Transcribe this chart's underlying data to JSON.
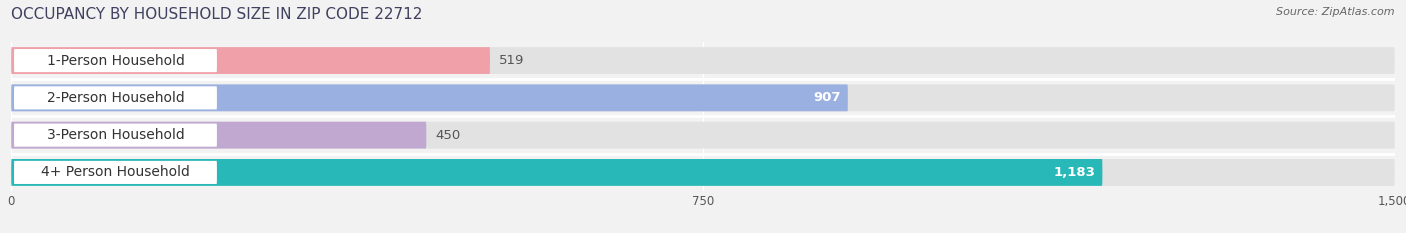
{
  "title": "OCCUPANCY BY HOUSEHOLD SIZE IN ZIP CODE 22712",
  "source": "Source: ZipAtlas.com",
  "categories": [
    "1-Person Household",
    "2-Person Household",
    "3-Person Household",
    "4+ Person Household"
  ],
  "values": [
    519,
    907,
    450,
    1183
  ],
  "bar_colors": [
    "#f0a0a8",
    "#9ab0e0",
    "#c0a8d0",
    "#28b8b8"
  ],
  "value_colors": [
    "#555555",
    "#ffffff",
    "#555555",
    "#ffffff"
  ],
  "xlim": [
    0,
    1500
  ],
  "xticks": [
    0,
    750,
    1500
  ],
  "background_color": "#f2f2f2",
  "bar_bg_color": "#e2e2e2",
  "title_fontsize": 11,
  "label_fontsize": 10,
  "value_fontsize": 9.5,
  "source_fontsize": 8
}
